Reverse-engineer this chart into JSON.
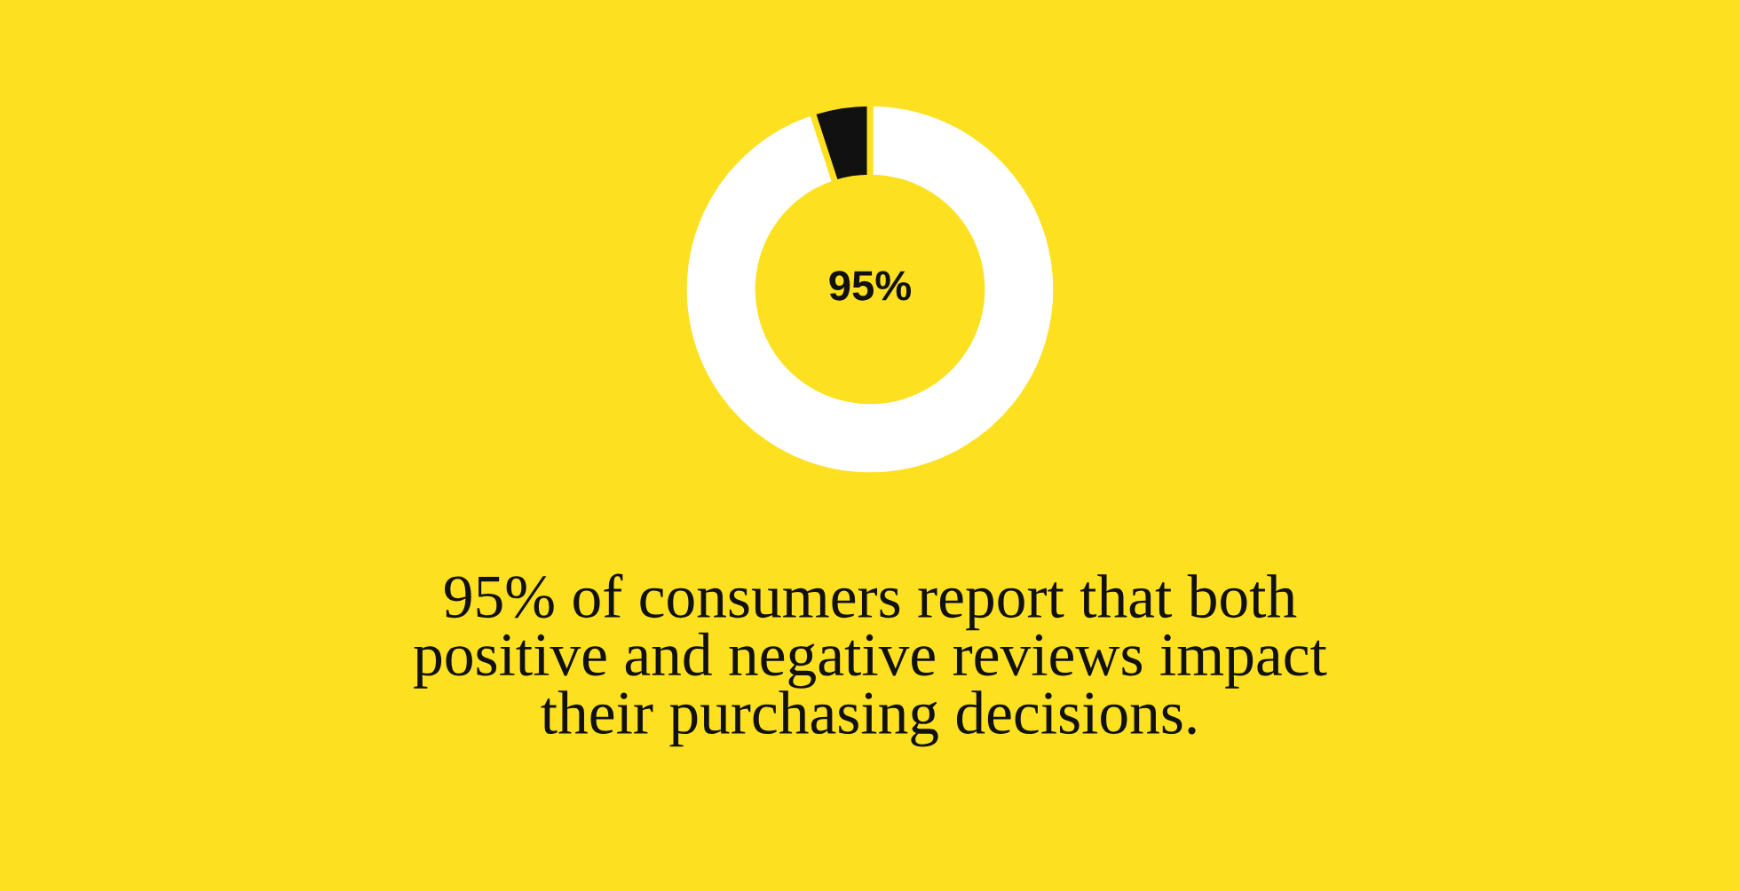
{
  "chart_data": {
    "type": "donut",
    "categories": [
      null,
      null
    ],
    "values": [
      95,
      5
    ],
    "colors": [
      "#ffffff",
      "#111111"
    ],
    "annotations": [
      "95%",
      "95% of consumers report that both\npositive and negative reviews impact\ntheir purchasing decisions."
    ]
  }
}
